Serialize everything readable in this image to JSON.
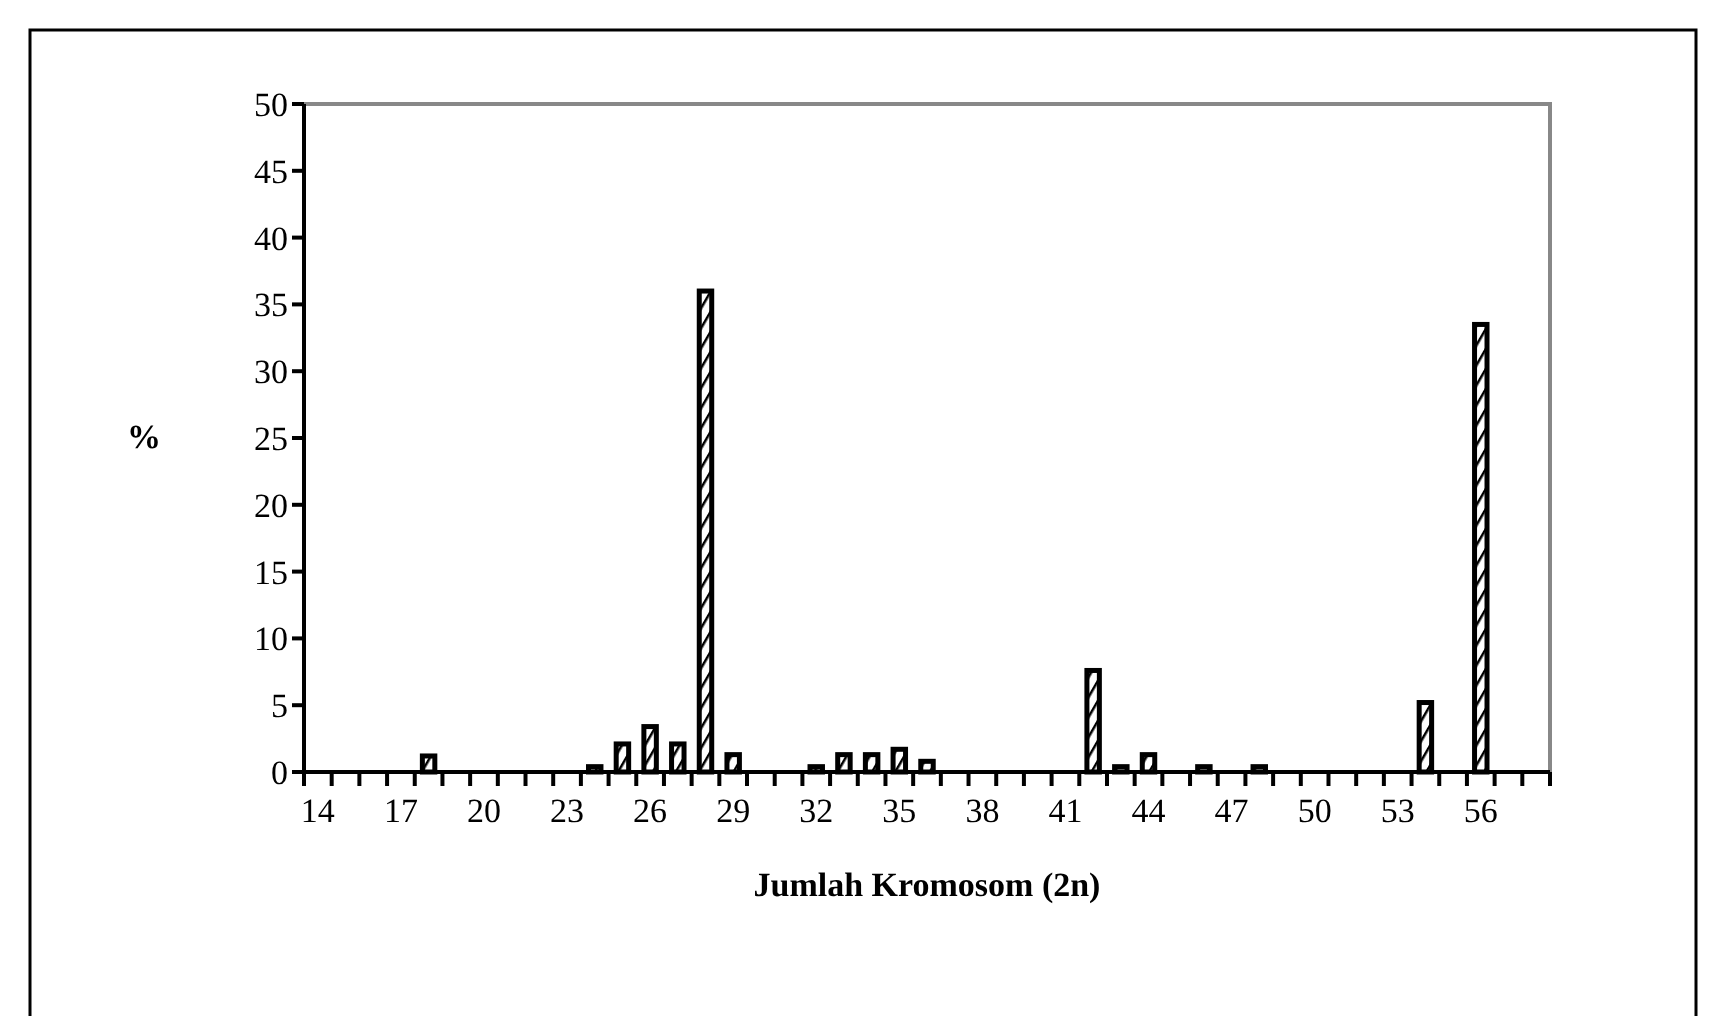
{
  "chart_data": {
    "type": "bar",
    "xlabel": "Jumlah Kromosom (2n)",
    "ylabel": "%",
    "categories": [
      "14",
      null,
      null,
      "17",
      null,
      null,
      "20",
      null,
      null,
      "23",
      null,
      null,
      "26",
      null,
      null,
      "29",
      null,
      null,
      "32",
      null,
      null,
      "35",
      null,
      null,
      "38",
      null,
      null,
      "41",
      null,
      null,
      "44",
      null,
      null,
      "47",
      null,
      null,
      "50",
      null,
      null,
      "53",
      null,
      null,
      "56",
      null,
      null
    ],
    "values": [
      0,
      0,
      0,
      0,
      1.2,
      0,
      0,
      0,
      0,
      0,
      0.4,
      2.1,
      3.4,
      2.1,
      36,
      1.3,
      0,
      0,
      0.4,
      1.3,
      1.3,
      1.7,
      0.8,
      0,
      0,
      0,
      0,
      0,
      7.6,
      0.4,
      1.3,
      0,
      0.4,
      0,
      0.4,
      0,
      0,
      0,
      0,
      0,
      5.2,
      0,
      33.5,
      0,
      0
    ],
    "color": "#000000",
    "ylim": [
      0,
      50
    ],
    "yticks": [
      0,
      5,
      10,
      15,
      20,
      25,
      30,
      35,
      40,
      45,
      50
    ],
    "grid": false
  }
}
